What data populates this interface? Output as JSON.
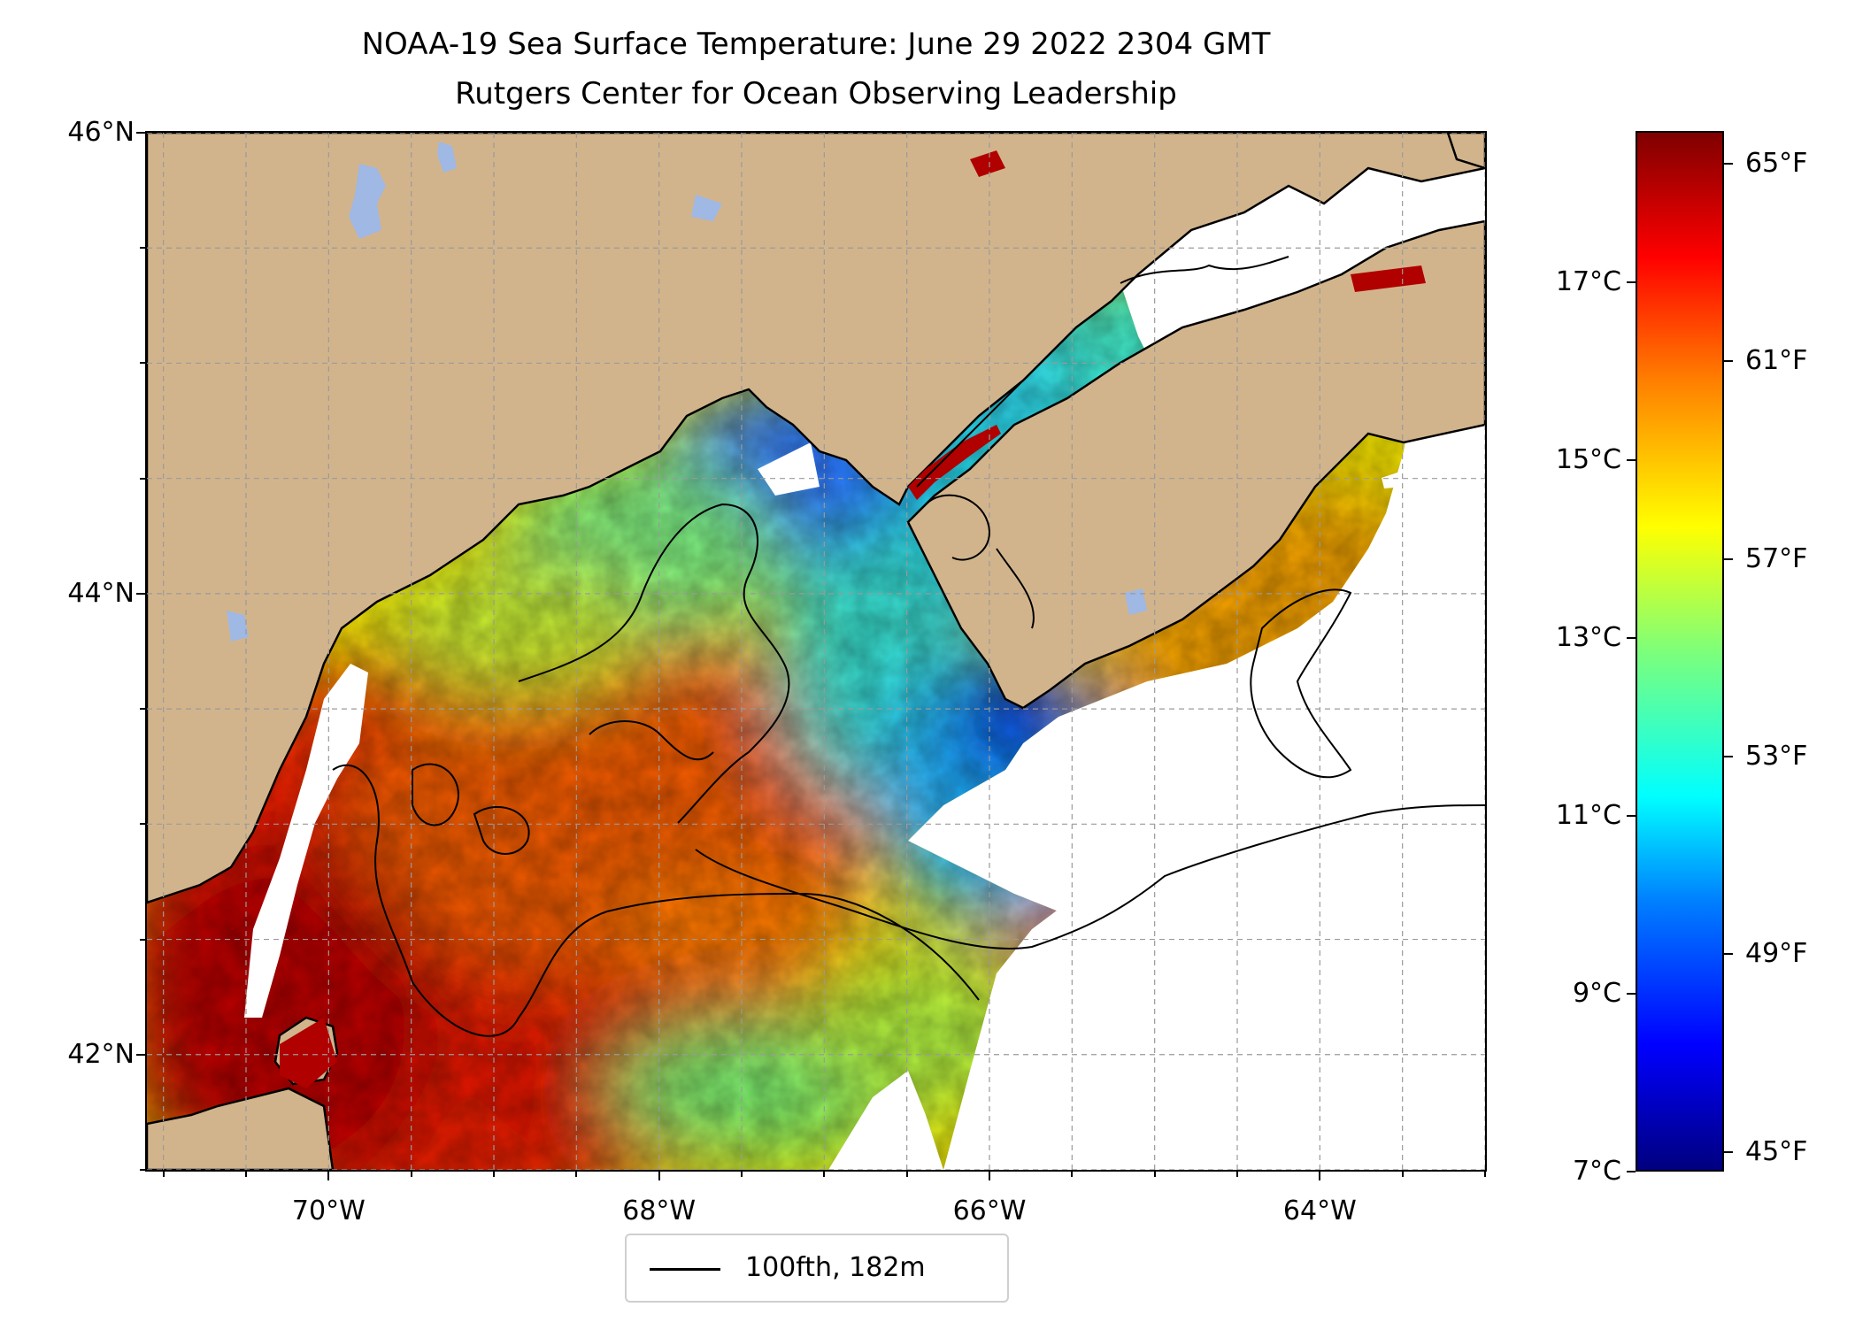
{
  "title": {
    "line1": "NOAA-19 Sea Surface Temperature: June 29 2022 2304 GMT",
    "line2": "Rutgers Center for Ocean Observing Leadership"
  },
  "map": {
    "lat_range": [
      41.5,
      46.0
    ],
    "lon_range": [
      -71.1,
      -63.0
    ],
    "lat_ticks": [
      {
        "value": 46,
        "label": "46°N"
      },
      {
        "value": 44,
        "label": "44°N"
      },
      {
        "value": 42,
        "label": "42°N"
      }
    ],
    "lon_ticks": [
      {
        "value": -70,
        "label": "70°W"
      },
      {
        "value": -68,
        "label": "68°W"
      },
      {
        "value": -66,
        "label": "66°W"
      },
      {
        "value": -64,
        "label": "64°W"
      }
    ],
    "land_color": "#d2b48c",
    "lake_color": "#9fb8e4",
    "gridlines": true,
    "colormap": "jet"
  },
  "colorbar": {
    "range_c": [
      7,
      18.7
    ],
    "celsius_ticks": [
      {
        "value": 17,
        "label": "17°C"
      },
      {
        "value": 15,
        "label": "15°C"
      },
      {
        "value": 13,
        "label": "13°C"
      },
      {
        "value": 11,
        "label": "11°C"
      },
      {
        "value": 9,
        "label": "9°C"
      },
      {
        "value": 7,
        "label": "7°C"
      }
    ],
    "fahrenheit_ticks": [
      {
        "value": 65,
        "label": "65°F"
      },
      {
        "value": 61,
        "label": "61°F"
      },
      {
        "value": 57,
        "label": "57°F"
      },
      {
        "value": 53,
        "label": "53°F"
      },
      {
        "value": 49,
        "label": "49°F"
      },
      {
        "value": 45,
        "label": "45°F"
      }
    ]
  },
  "legend": {
    "label": "100fth, 182m",
    "color": "#000000",
    "placement": "bottom-center"
  }
}
